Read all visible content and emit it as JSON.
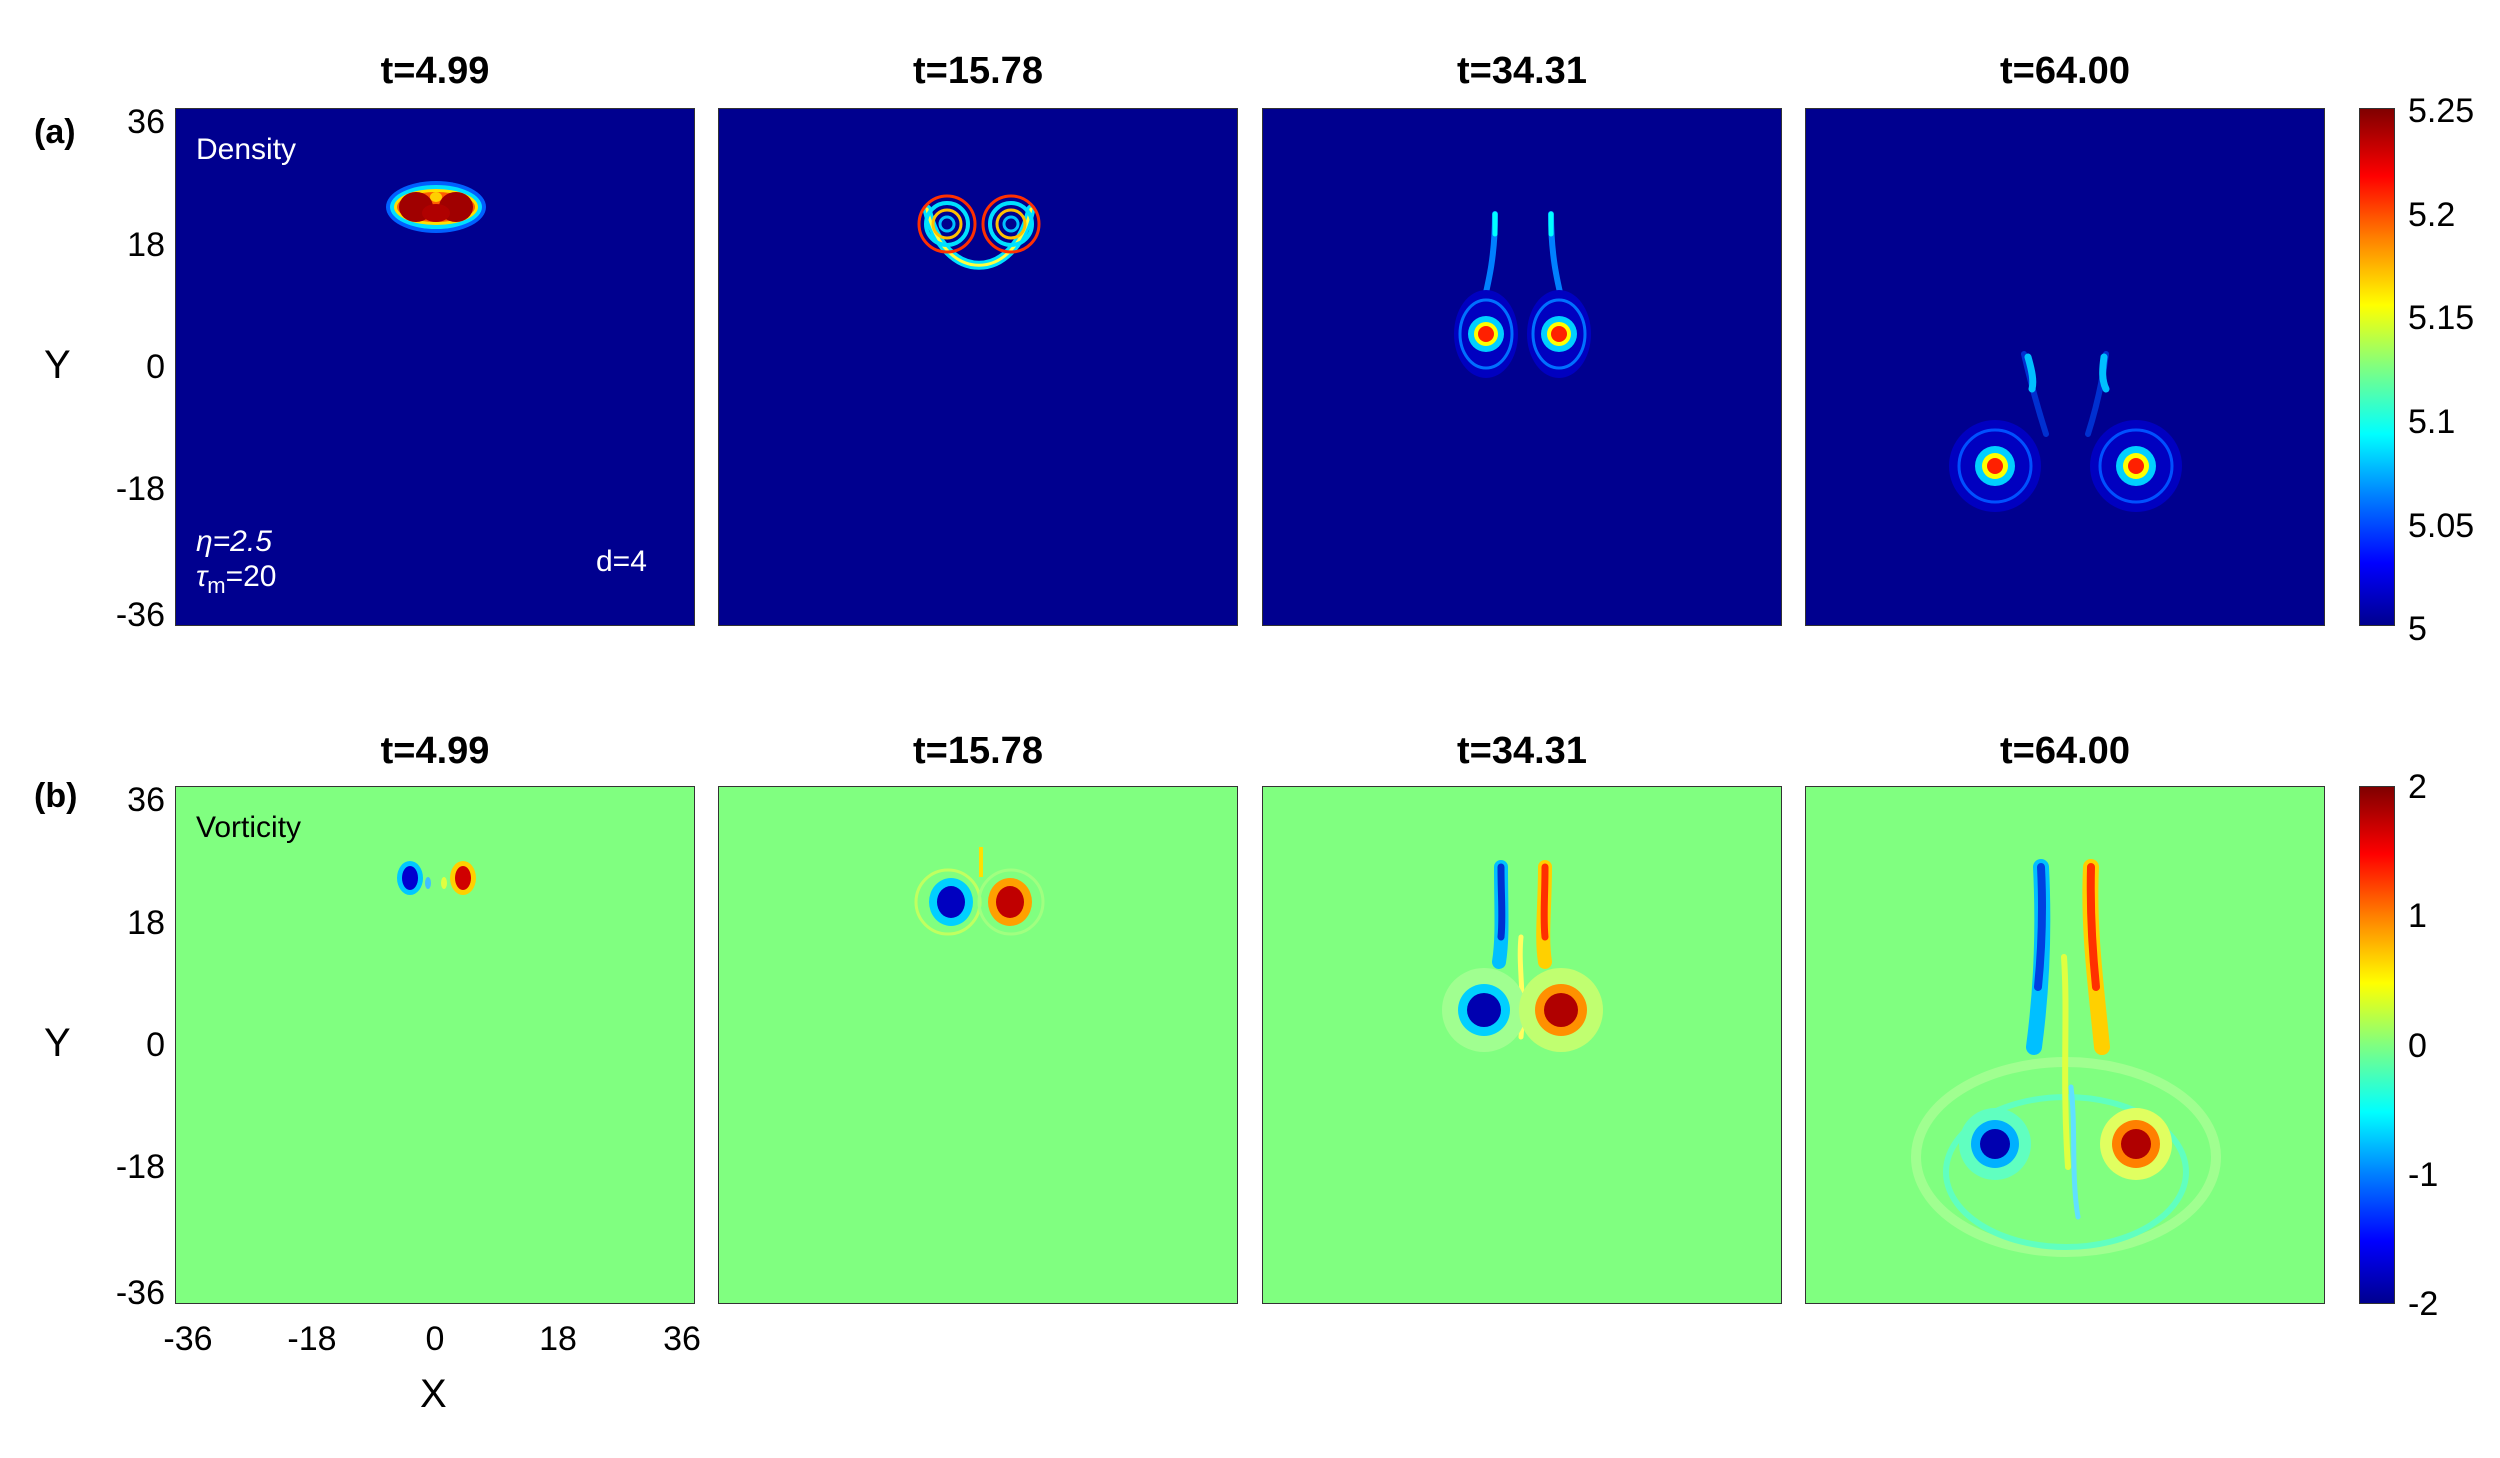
{
  "figure": {
    "row_a_label": "(a)",
    "row_b_label": "(b)",
    "row_a_field": "Density",
    "row_b_field": "Vorticity",
    "params": {
      "eta": "η=2.5",
      "tau_base": "τ",
      "tau_sub": "m",
      "tau_val": "=20",
      "d": "d=4"
    },
    "xlabel": "X",
    "ylabel": "Y",
    "xticks": [
      "-36",
      "-18",
      "0",
      "18",
      "36"
    ],
    "yticks": [
      "36",
      "18",
      "0",
      "-18",
      "-36"
    ]
  },
  "chart_data": [
    {
      "type": "heatmap",
      "field": "Density",
      "panel_titles": [
        "t=4.99",
        "t=15.78",
        "t=34.31",
        "t=64.00"
      ],
      "times": [
        4.99,
        15.78,
        34.31,
        64.0
      ],
      "xlim": [
        -36,
        36
      ],
      "ylim": [
        -36,
        36
      ],
      "colorbar": {
        "min": 5,
        "max": 5.25,
        "ticks": [
          "5.25",
          "5.2",
          "5.15",
          "5.1",
          "5.05",
          "5"
        ]
      },
      "features": [
        {
          "t": 4.99,
          "shape": "dipole blob",
          "center": [
            0,
            23
          ]
        },
        {
          "t": 15.78,
          "shape": "two spiral arms joined by a curve",
          "centers": [
            [
              -5,
              20
            ],
            [
              5,
              20
            ]
          ]
        },
        {
          "t": 34.31,
          "shape": "vortex pair with trailing tails",
          "centers": [
            [
              -5,
              5
            ],
            [
              5,
              5
            ]
          ]
        },
        {
          "t": 64.0,
          "shape": "separated vortex pair with short tails",
          "centers": [
            [
              -10,
              -14
            ],
            [
              10,
              -14
            ]
          ]
        }
      ]
    },
    {
      "type": "heatmap",
      "field": "Vorticity",
      "panel_titles": [
        "t=4.99",
        "t=15.78",
        "t=34.31",
        "t=64.00"
      ],
      "times": [
        4.99,
        15.78,
        34.31,
        64.0
      ],
      "xlim": [
        -36,
        36
      ],
      "ylim": [
        -36,
        36
      ],
      "colorbar": {
        "min": -2,
        "max": 2,
        "ticks": [
          "2",
          "1",
          "0",
          "-1",
          "-2"
        ]
      },
      "features": [
        {
          "t": 4.99,
          "negative_center": [
            -3.5,
            23
          ],
          "positive_center": [
            3.5,
            23
          ]
        },
        {
          "t": 15.78,
          "negative_center": [
            -4,
            20
          ],
          "positive_center": [
            4,
            19.5
          ]
        },
        {
          "t": 34.31,
          "negative_center": [
            -5,
            5
          ],
          "positive_center": [
            5,
            5
          ]
        },
        {
          "t": 64.0,
          "negative_center": [
            -10,
            -14
          ],
          "positive_center": [
            10,
            -14
          ]
        }
      ]
    }
  ]
}
